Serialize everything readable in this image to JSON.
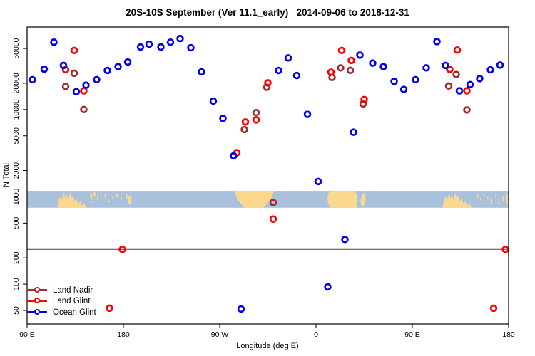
{
  "chart_data": {
    "type": "scatter",
    "title": "20S-10S September (Ver 11.1_early)   2014-09-06 to 2018-12-31",
    "xlabel": "Longitude (deg E)",
    "ylabel": "N Total",
    "grid": false,
    "legend_position": "bottom-left-inside",
    "x_axis": {
      "lim": [
        90,
        540
      ],
      "ticks": [
        {
          "v": 90,
          "label": "90 E"
        },
        {
          "v": 180,
          "label": "180"
        },
        {
          "v": 270,
          "label": "90 W"
        },
        {
          "v": 360,
          "label": "0"
        },
        {
          "v": 450,
          "label": "90 E"
        },
        {
          "v": 540,
          "label": "180"
        }
      ]
    },
    "y_axis": {
      "scale": "log",
      "lim": [
        35,
        88000
      ],
      "ticks": [
        50000,
        20000,
        10000,
        5000,
        2000,
        1000,
        500,
        200,
        100,
        50
      ]
    },
    "ref_line": {
      "n": 250,
      "color": "#444444"
    },
    "series": [
      {
        "name": "Land Nadir",
        "color": "#9e2f2f",
        "points": [
          [
            134,
            26000
          ],
          [
            126,
            18400
          ],
          [
            143,
            10000
          ],
          [
            293,
            5900
          ],
          [
            304,
            9200
          ],
          [
            314,
            18000
          ],
          [
            320,
            860
          ],
          [
            375,
            23300
          ],
          [
            383,
            30000
          ],
          [
            392,
            28100
          ],
          [
            404,
            11600
          ],
          [
            484,
            18600
          ],
          [
            491,
            25200
          ],
          [
            501,
            9900
          ]
        ]
      },
      {
        "name": "Land Glint",
        "color": "#ff0000",
        "points": [
          [
            134,
            47500
          ],
          [
            126,
            28500
          ],
          [
            143,
            16400
          ],
          [
            286,
            3200
          ],
          [
            294,
            7200
          ],
          [
            304,
            7600
          ],
          [
            315,
            20200
          ],
          [
            320,
            556
          ],
          [
            374,
            26800
          ],
          [
            384,
            47500
          ],
          [
            393,
            36500
          ],
          [
            405,
            13000
          ],
          [
            485,
            28800
          ],
          [
            492,
            48000
          ],
          [
            501,
            16400
          ],
          [
            167,
            53
          ],
          [
            179,
            250
          ],
          [
            526,
            53
          ],
          [
            537,
            250
          ]
        ]
      },
      {
        "name": "Ocean Glint",
        "color": "#0000ee",
        "points": [
          [
            95,
            22000
          ],
          [
            106,
            29000
          ],
          [
            115,
            59000
          ],
          [
            124,
            32000
          ],
          [
            136,
            16000
          ],
          [
            145,
            19000
          ],
          [
            155,
            22000
          ],
          [
            165,
            28000
          ],
          [
            175,
            31000
          ],
          [
            184,
            35000
          ],
          [
            196,
            52000
          ],
          [
            204,
            56000
          ],
          [
            215,
            52000
          ],
          [
            224,
            59000
          ],
          [
            233,
            65000
          ],
          [
            243,
            51000
          ],
          [
            253,
            27000
          ],
          [
            264,
            12500
          ],
          [
            273,
            7900
          ],
          [
            283,
            2950
          ],
          [
            290,
            52
          ],
          [
            325,
            28000
          ],
          [
            334,
            39000
          ],
          [
            342,
            24500
          ],
          [
            352,
            8800
          ],
          [
            362,
            1500
          ],
          [
            371,
            93
          ],
          [
            387,
            325
          ],
          [
            395,
            5500
          ],
          [
            401,
            42000
          ],
          [
            413,
            34000
          ],
          [
            423,
            31000
          ],
          [
            433,
            21000
          ],
          [
            442,
            17000
          ],
          [
            453,
            22000
          ],
          [
            463,
            30000
          ],
          [
            473,
            60000
          ],
          [
            481,
            32000
          ],
          [
            494,
            16400
          ],
          [
            504,
            19300
          ],
          [
            513,
            22600
          ],
          [
            523,
            28500
          ],
          [
            532,
            32300
          ]
        ]
      }
    ],
    "map_band": {
      "n_range": [
        750,
        1170
      ],
      "ocean_color": "#a9c1dd",
      "land_color": "#fbd88d",
      "australia_polygon": [
        [
          118.5,
          1
        ],
        [
          119.5,
          0.5
        ],
        [
          121,
          0.35
        ],
        [
          122,
          0.6
        ],
        [
          123.5,
          0.25
        ],
        [
          124.5,
          0.1
        ],
        [
          125.5,
          0.45
        ],
        [
          127,
          0.2
        ],
        [
          128.5,
          0.55
        ],
        [
          130,
          0.1
        ],
        [
          131.5,
          0.4
        ],
        [
          133,
          0.25
        ],
        [
          134.5,
          0.65
        ],
        [
          136,
          0.45
        ],
        [
          138,
          0.8
        ],
        [
          139.5,
          0.6
        ],
        [
          141.5,
          0.9
        ],
        [
          143,
          0.7
        ],
        [
          145,
          0.95
        ],
        [
          146.5,
          1
        ]
      ],
      "australia_shifts": [
        0,
        360
      ],
      "polygons": [
        [
          [
            284.5,
            0
          ],
          [
            321,
            0
          ],
          [
            317.5,
            0.5
          ],
          [
            311,
            1
          ],
          [
            293,
            1
          ],
          [
            286,
            0.5
          ]
        ],
        [
          [
            370.5,
            0.45
          ],
          [
            372,
            0.08
          ],
          [
            374,
            0
          ],
          [
            396,
            0
          ],
          [
            398.5,
            0.25
          ],
          [
            399,
            0.6
          ],
          [
            397.5,
            1
          ],
          [
            374,
            1
          ],
          [
            371.5,
            0.8
          ]
        ],
        [
          [
            401.5,
            0.55
          ],
          [
            403,
            0.2
          ],
          [
            406,
            0.1
          ],
          [
            406.5,
            0.5
          ],
          [
            404.5,
            0.9
          ],
          [
            402.5,
            0.9
          ]
        ]
      ],
      "specks": [
        [
          150,
          0.15,
          2,
          0.3
        ],
        [
          153,
          0.05,
          1.5,
          0.25
        ],
        [
          156,
          0.3,
          1.2,
          0.25
        ],
        [
          159,
          0.1,
          1,
          0.2
        ],
        [
          163,
          0.2,
          1,
          0.2
        ],
        [
          166,
          0.45,
          1.4,
          0.25
        ],
        [
          170,
          0.3,
          1,
          0.2
        ],
        [
          174,
          0.15,
          1.2,
          0.2
        ],
        [
          178,
          0.35,
          1,
          0.2
        ],
        [
          183,
          0.2,
          1.5,
          0.3
        ],
        [
          186,
          0.3,
          3,
          0.5
        ],
        [
          150,
          0.6,
          1,
          0.2
        ],
        [
          511,
          0.2,
          1.2,
          0.25
        ],
        [
          514,
          0.4,
          1,
          0.2
        ],
        [
          517,
          0.15,
          1,
          0.2
        ],
        [
          520.5,
          0.3,
          1,
          0.2
        ],
        [
          524,
          0.5,
          1.5,
          0.3
        ],
        [
          528,
          0.2,
          1,
          0.2
        ],
        [
          531,
          0.55,
          1,
          0.25
        ],
        [
          535,
          0.3,
          1.5,
          0.3
        ],
        [
          538.5,
          0.15,
          1.5,
          0.6
        ],
        [
          539.5,
          0.7,
          0.8,
          0.3
        ]
      ]
    },
    "marker": {
      "shape": "open-circle",
      "radius": 3.9,
      "stroke_width": 2.7
    }
  },
  "legend": {
    "entries": [
      {
        "label": "Land Nadir"
      },
      {
        "label": "Land Glint"
      },
      {
        "label": "Ocean Glint"
      }
    ]
  }
}
